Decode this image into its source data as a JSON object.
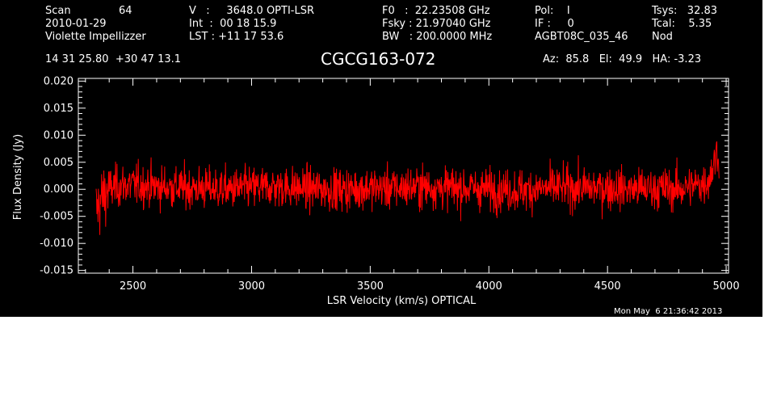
{
  "header": {
    "scan_label": "Scan",
    "scan_value": "64",
    "date": "2010-01-29",
    "observer": "Violette Impellizzer",
    "coords": "14 31 25.80  +30 47 13.1",
    "v_line": "V   :     3648.0 OPTI-LSR",
    "int_line": "Int  :  00 18 15.9",
    "lst_line": "LST : +11 17 53.6",
    "f0_line": "F0   :  22.23508 GHz",
    "fsky_line": "Fsky : 21.97040 GHz",
    "bw_line": "BW   : 200.0000 MHz",
    "pol_line": "Pol:    I",
    "if_line": "IF :     0",
    "project": "AGBT08C_035_46",
    "tsys_line": "Tsys:   32.83",
    "tcal_line": "Tcal:    5.35",
    "mode": "Nod",
    "source": "CGCG163-072",
    "azel": "Az:  85.8   El:  49.9   HA: -3.23",
    "timestamp": "Mon May  6 21:36:42 2013"
  },
  "colors": {
    "background": "#000000",
    "axes": "#ffffff",
    "spectrum": "#ff0000"
  },
  "chart_data": {
    "type": "line",
    "xlabel": "LSR Velocity (km/s) OPTICAL",
    "ylabel": "Flux Density (Jy)",
    "xlim": [
      2270,
      5010
    ],
    "ylim": [
      -0.0155,
      0.0205
    ],
    "xticks": [
      2500,
      3000,
      3500,
      4000,
      4500,
      5000
    ],
    "xtick_labels": [
      "2500",
      "3000",
      "3500",
      "4000",
      "4500",
      "5000"
    ],
    "yticks": [
      -0.015,
      -0.01,
      -0.005,
      0.0,
      0.005,
      0.01,
      0.015,
      0.02
    ],
    "ytick_labels": [
      "-0.015",
      "-0.010",
      "-0.005",
      "0.000",
      "0.005",
      "0.010",
      "0.015",
      "0.020"
    ],
    "series": [
      {
        "color": "#ff0000",
        "x": [
          2345,
          2355,
          2365,
          2380,
          2400,
          2430,
          2470,
          2520,
          2600,
          2700,
          2800,
          2900,
          3000,
          3100,
          3200,
          3300,
          3400,
          3500,
          3600,
          3700,
          3800,
          3900,
          4000,
          4100,
          4200,
          4300,
          4400,
          4500,
          4600,
          4700,
          4800,
          4850,
          4900,
          4930,
          4950,
          4960,
          4970
        ],
        "y": [
          -0.004,
          -0.003,
          -0.002,
          -0.001,
          0.0,
          0.0005,
          0.0008,
          0.0008,
          0.0005,
          0.0003,
          0.0002,
          0.0,
          0.0003,
          0.0005,
          0.0002,
          0.0,
          0.0,
          0.0003,
          0.0002,
          0.0005,
          0.0003,
          0.0002,
          0.0,
          -0.0002,
          0.0,
          0.0003,
          0.0002,
          0.0003,
          0.0,
          0.0002,
          0.0,
          0.0005,
          0.001,
          0.002,
          0.005,
          0.007,
          0.006
        ],
        "noise_rms": 0.0032
      }
    ],
    "grid": false,
    "legend": "none"
  }
}
